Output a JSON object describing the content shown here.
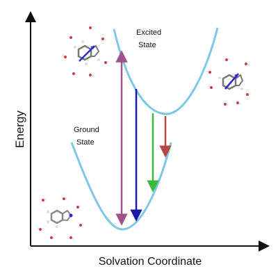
{
  "labels": {
    "excited_line1": "Excited",
    "excited_line2": "State",
    "ground_line1": "Ground",
    "ground_line2": "State",
    "y_axis": "Energy",
    "x_axis": "Solvation Coordinate"
  },
  "colors": {
    "curve": "#7cc8e6",
    "axis": "#111111",
    "arrow_purple": "#a0528a",
    "arrow_blue": "#1a1aa6",
    "arrow_green": "#3cb83c",
    "arrow_red": "#b84444",
    "molecule_arrow": "#2a2ad0",
    "water_oxygen": "#c83c3c"
  },
  "icons": {
    "top_left": "solvated-molecule-excited-icon",
    "right": "relaxed-solvated-molecule-icon",
    "bottom_left": "ground-state-molecule-icon"
  }
}
